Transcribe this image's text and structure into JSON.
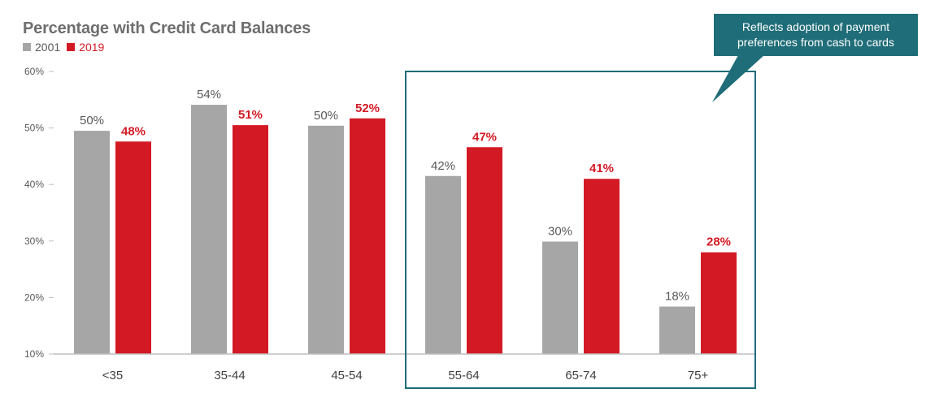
{
  "chart_data": {
    "type": "bar",
    "title": "Percentage with Credit Card Balances",
    "categories": [
      "<35",
      "35-44",
      "45-54",
      "55-64",
      "65-74",
      "75+"
    ],
    "series": [
      {
        "name": "2001",
        "color": "#a6a6a6",
        "label_color": "#595959",
        "values": [
          49.5,
          54.1,
          50.4,
          41.5,
          29.9,
          18.4
        ],
        "labels": [
          "50%",
          "54%",
          "50%",
          "42%",
          "30%",
          "18%"
        ]
      },
      {
        "name": "2019",
        "color": "#d31a24",
        "label_color": "#d31a24",
        "values": [
          47.6,
          50.5,
          51.7,
          46.6,
          41.0,
          28.0
        ],
        "labels": [
          "48%",
          "51%",
          "52%",
          "47%",
          "41%",
          "28%"
        ]
      }
    ],
    "ylim": [
      10,
      60
    ],
    "yticks": [
      10,
      20,
      30,
      40,
      50,
      60
    ],
    "ytick_labels": [
      "10%",
      "20%",
      "30%",
      "40%",
      "50%",
      "60%"
    ],
    "xlabel": "",
    "ylabel": "",
    "grid": false,
    "legend_position": "top-left",
    "highlight": {
      "categories": [
        "55-64",
        "65-74",
        "75+"
      ],
      "color": "#1f6d78"
    },
    "annotation": {
      "text_line1": "Reflects adoption of payment",
      "text_line2": "preferences from cash to cards",
      "color": "#1f6d78"
    }
  }
}
